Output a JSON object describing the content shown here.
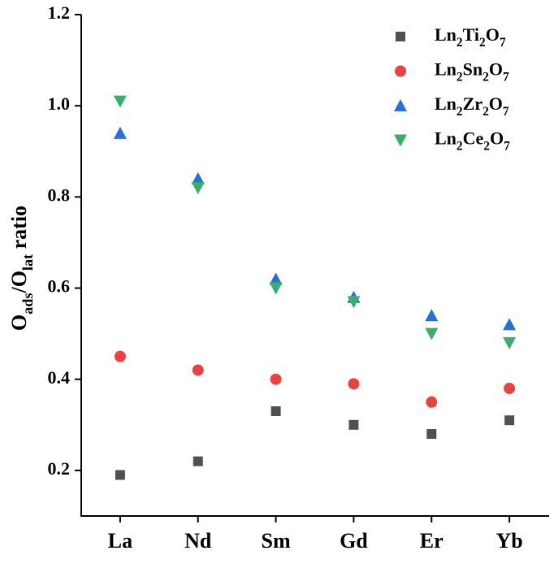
{
  "chart_data": {
    "type": "scatter",
    "y_label": "Oads/Olat ratio",
    "categories": [
      "La",
      "Nd",
      "Sm",
      "Gd",
      "Er",
      "Yb"
    ],
    "ylim": [
      0.1,
      1.2
    ],
    "yticks": [
      0.2,
      0.4,
      0.6,
      0.8,
      {
        "value": 1,
        "label": "1.0"
      },
      1.2
    ],
    "legend": "upper right",
    "series": [
      {
        "name": "Ln2Ti2O7",
        "color": "#505050",
        "marker": "square",
        "values": [
          0.19,
          0.22,
          0.33,
          0.3,
          0.28,
          0.31
        ]
      },
      {
        "name": "Ln2Sn2O7",
        "color": "#e84343",
        "marker": "circle",
        "values": [
          0.45,
          0.42,
          0.4,
          0.39,
          0.35,
          0.38
        ]
      },
      {
        "name": "Ln2Zr2O7",
        "color": "#2a6fd6",
        "marker": "triangle-up",
        "values": [
          0.94,
          0.84,
          0.62,
          0.58,
          0.54,
          0.52
        ]
      },
      {
        "name": "Ln2Ce2O7",
        "color": "#3aae6a",
        "marker": "triangle-down",
        "values": [
          1.01,
          0.82,
          0.6,
          0.57,
          0.5,
          0.48
        ]
      }
    ]
  }
}
